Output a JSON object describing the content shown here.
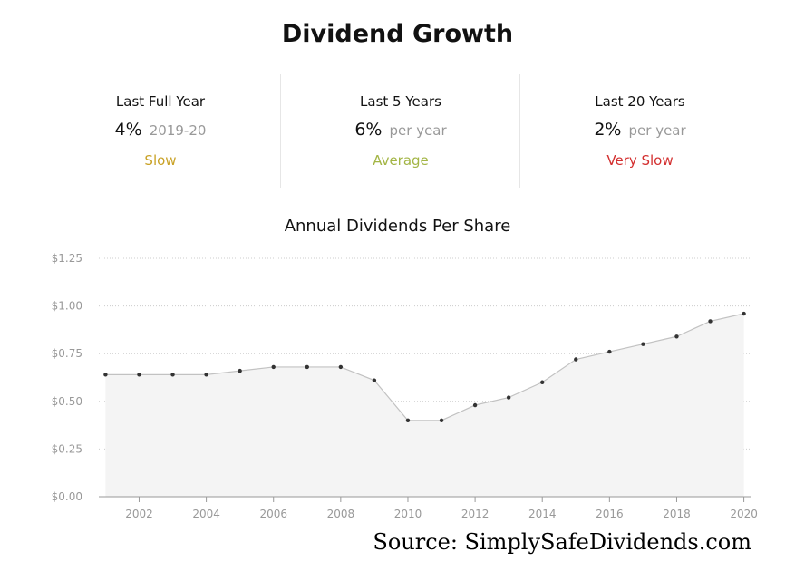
{
  "title": "Dividend Growth",
  "stats": [
    {
      "label": "Last Full Year",
      "value": "4%",
      "sub": "2019-20",
      "rating": "Slow",
      "rating_color": "#c9a227"
    },
    {
      "label": "Last 5 Years",
      "value": "6%",
      "sub": "per year",
      "rating": "Average",
      "rating_color": "#a3b545"
    },
    {
      "label": "Last 20 Years",
      "value": "2%",
      "sub": "per year",
      "rating": "Very Slow",
      "rating_color": "#d32f2f"
    }
  ],
  "source": "Source: SimplySafeDividends.com",
  "chart_data": {
    "type": "area",
    "title": "Annual Dividends Per Share",
    "xlabel": "",
    "ylabel": "",
    "x": [
      2001,
      2002,
      2003,
      2004,
      2005,
      2006,
      2007,
      2008,
      2009,
      2010,
      2011,
      2012,
      2013,
      2014,
      2015,
      2016,
      2017,
      2018,
      2019,
      2020
    ],
    "values": [
      0.64,
      0.64,
      0.64,
      0.64,
      0.66,
      0.68,
      0.68,
      0.68,
      0.61,
      0.4,
      0.4,
      0.48,
      0.52,
      0.6,
      0.72,
      0.76,
      0.8,
      0.84,
      0.92,
      0.96
    ],
    "xticks": [
      2002,
      2004,
      2006,
      2008,
      2010,
      2012,
      2014,
      2016,
      2018,
      2020
    ],
    "yticks": [
      0,
      0.25,
      0.5,
      0.75,
      1.0,
      1.25
    ],
    "ytick_labels": [
      "$0.00",
      "$0.25",
      "$0.50",
      "$0.75",
      "$1.00",
      "$1.25"
    ],
    "ylim": [
      0,
      1.25
    ],
    "xlim": [
      2000.8,
      2020.2
    ],
    "grid": true,
    "colors": {
      "line": "#c2c2c2",
      "fill": "#f4f4f4",
      "point": "#333333",
      "grid": "#cccccc",
      "tick": "#999999"
    }
  }
}
